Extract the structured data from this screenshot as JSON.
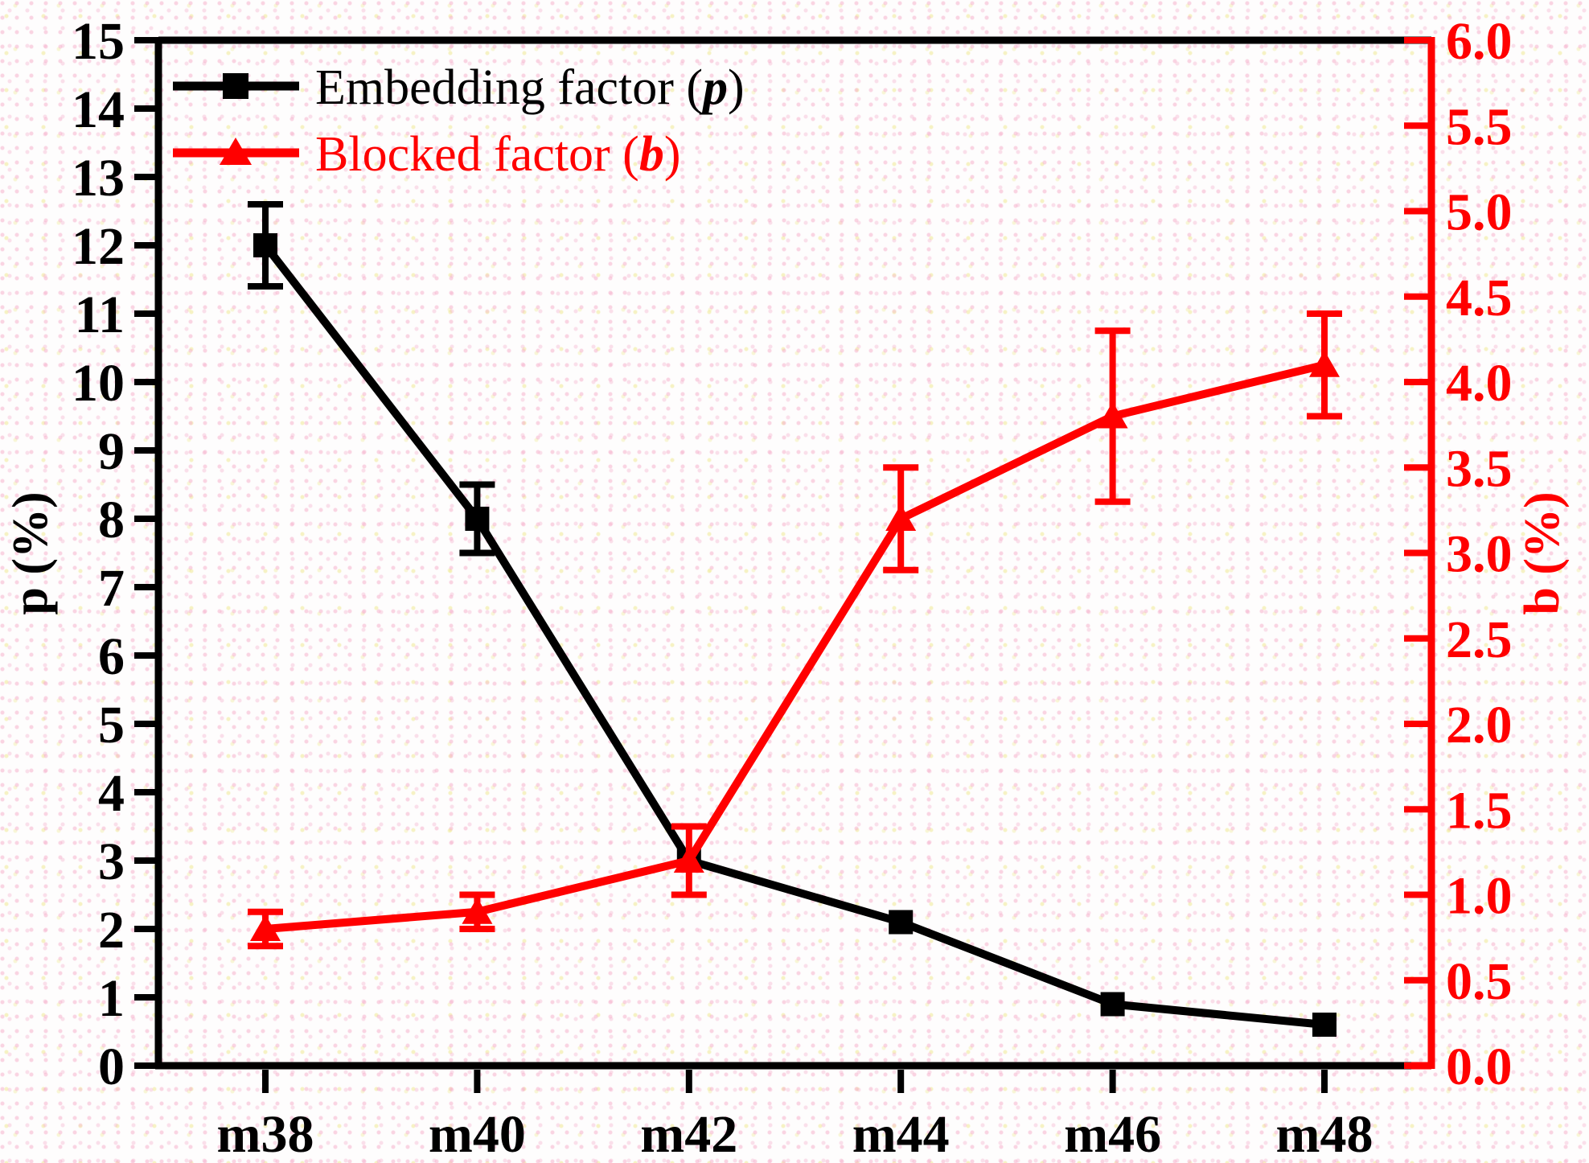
{
  "figure_title": "",
  "background": {
    "base_color": "#fefdfd",
    "dot_colors": [
      "#f6b2cd",
      "#eee88c"
    ]
  },
  "chart_data": {
    "type": "line",
    "categories": [
      "m38",
      "m40",
      "m42",
      "m44",
      "m46",
      "m48"
    ],
    "series": [
      {
        "name": "Embedding factor (p)",
        "legend": {
          "prefix": "Embedding factor (",
          "symbol": "p",
          "suffix": ")"
        },
        "color": "#000000",
        "marker": "square",
        "axis": "left",
        "values": [
          12.0,
          8.0,
          3.0,
          2.1,
          0.9,
          0.6
        ],
        "errors": [
          0.6,
          0.5,
          0,
          0,
          0,
          0
        ]
      },
      {
        "name": "Blocked factor (b)",
        "legend": {
          "prefix": "Blocked factor (",
          "symbol": "b",
          "suffix": ")"
        },
        "color": "#ff0000",
        "marker": "triangle-up",
        "axis": "right",
        "values": [
          0.8,
          0.9,
          1.2,
          3.2,
          3.8,
          4.1
        ],
        "errors": [
          0.1,
          0.1,
          0.2,
          0.3,
          0.5,
          0.3
        ]
      }
    ],
    "left_axis": {
      "label": "p (%)",
      "min": 0,
      "max": 15,
      "tick_step": 1,
      "color": "#000000",
      "format": "integer"
    },
    "right_axis": {
      "label": "b (%)",
      "min": 0,
      "max": 6,
      "tick_step": 0.5,
      "color": "#ff0000",
      "format": "one_decimal"
    },
    "x_axis": {
      "color": "#000000"
    },
    "legend_position": "top-left",
    "grid": false
  }
}
